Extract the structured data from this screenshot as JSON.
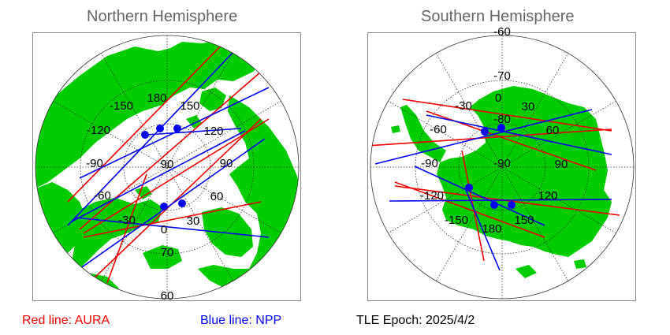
{
  "north": {
    "title": "Northern Hemisphere",
    "lon_labels": [
      "180",
      "150",
      "-150",
      "120",
      "-120",
      "90",
      "-90",
      "60",
      "-60",
      "30",
      "-30",
      "0"
    ],
    "lat_labels": [
      "90",
      "70",
      "60"
    ]
  },
  "south": {
    "title": "Southern Hemisphere",
    "lon_labels": [
      "0",
      "30",
      "-30",
      "60",
      "-60",
      "90",
      "-90",
      "120",
      "-120",
      "150",
      "-150",
      "180"
    ],
    "lat_labels": [
      "-60",
      "-70",
      "-80",
      "-90"
    ]
  },
  "legend": {
    "aura": "Red line: AURA",
    "npp": "Blue line: NPP",
    "epoch": "TLE Epoch: 2025/4/2"
  },
  "colors": {
    "land": "#00cc00",
    "aura": "#ee0000",
    "npp": "#0000ee",
    "grid": "#333333",
    "frame": "#888888",
    "title": "#666666"
  }
}
